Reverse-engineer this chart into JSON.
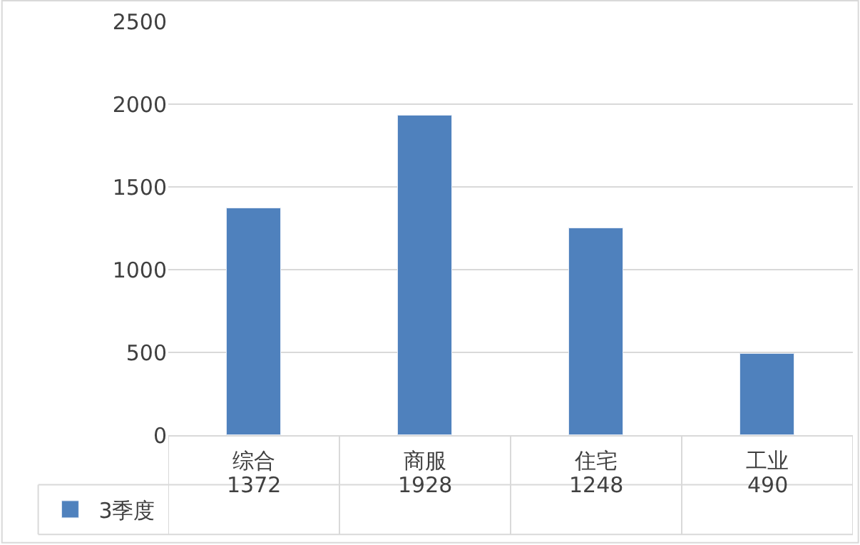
{
  "chart_data": {
    "type": "bar",
    "categories": [
      "综合",
      "商服",
      "住宅",
      "工业"
    ],
    "series": [
      {
        "name": "3季度",
        "color": "#4f81bd",
        "values": [
          1372,
          1928,
          1248,
          490
        ]
      }
    ],
    "ylim": [
      0,
      2500
    ],
    "yticks": [
      0,
      500,
      1000,
      1500,
      2000,
      2500
    ],
    "grid": "y",
    "data_labels": true,
    "legend": "bottom"
  }
}
